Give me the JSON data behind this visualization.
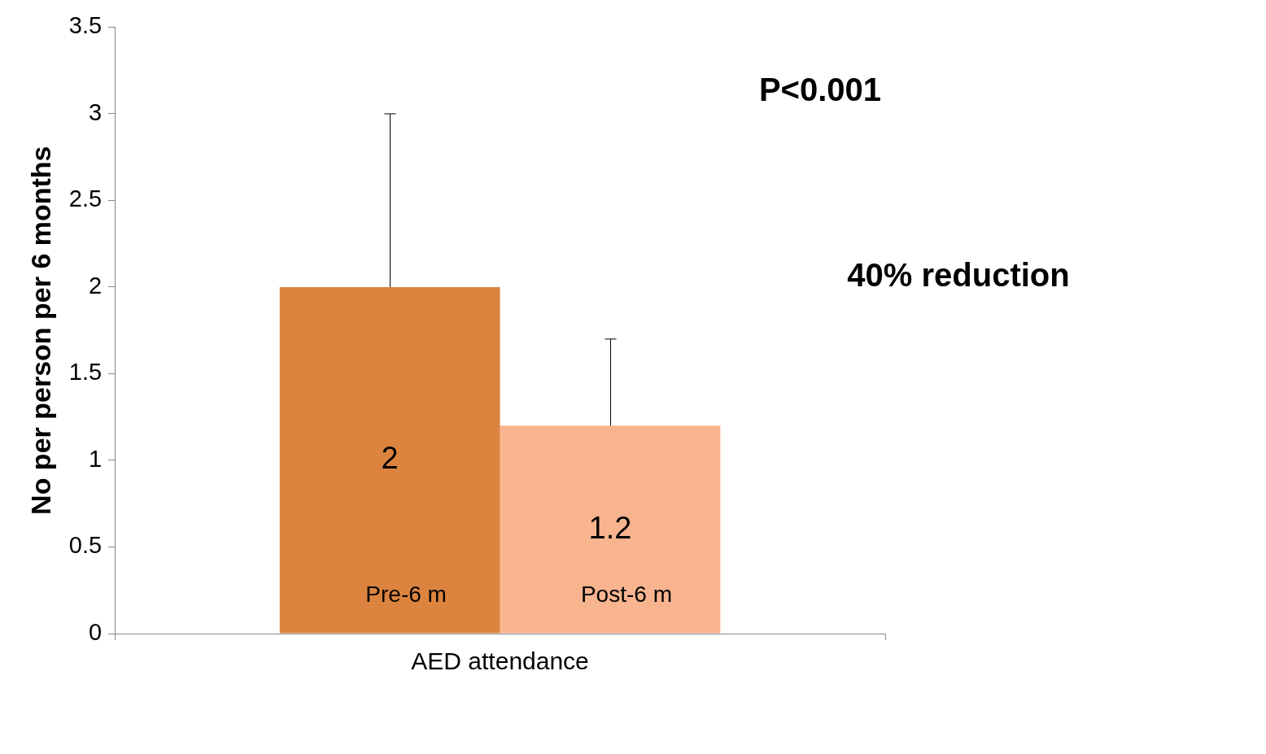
{
  "chart_data": {
    "type": "bar",
    "categories": [
      "AED attendance"
    ],
    "series": [
      {
        "name": "Pre-6 m",
        "color": "#dc843f",
        "values": [
          2
        ],
        "errors": [
          [
            2,
            3
          ]
        ]
      },
      {
        "name": "Post-6 m",
        "color": "#f8b48f",
        "values": [
          1.2
        ],
        "errors": [
          [
            1.2,
            1.7
          ]
        ]
      }
    ],
    "ylabel": "No per person per 6 months",
    "ylim": [
      0,
      3.5
    ],
    "yticks": [
      0,
      0.5,
      1,
      1.5,
      2,
      2.5,
      3,
      3.5
    ],
    "annotations": [
      "P<0.001",
      "40% reduction"
    ],
    "data_labels": true,
    "legend": false,
    "grid": false
  }
}
